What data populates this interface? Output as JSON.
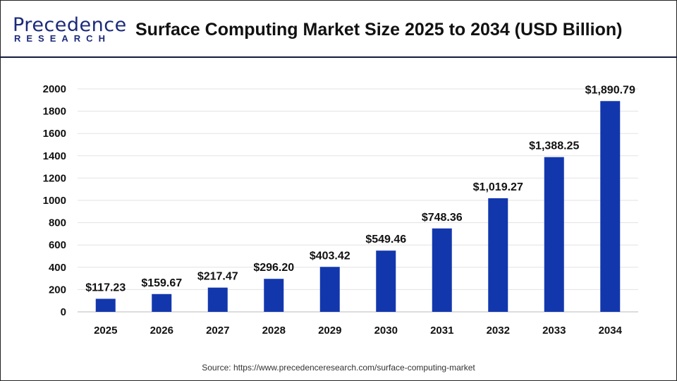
{
  "logo": {
    "text": "Precedence",
    "subtext": "RESEARCH"
  },
  "title": "Surface Computing Market Size 2025 to 2034 (USD Billion)",
  "source": "Source: https://www.precedenceresearch.com/surface-computing-market",
  "chart_data": {
    "type": "bar",
    "title": "Surface Computing Market Size 2025 to 2034 (USD Billion)",
    "categories": [
      "2025",
      "2026",
      "2027",
      "2028",
      "2029",
      "2030",
      "2031",
      "2032",
      "2033",
      "2034"
    ],
    "values": [
      117.23,
      159.67,
      217.47,
      296.2,
      403.42,
      549.46,
      748.36,
      1019.27,
      1388.25,
      1890.79
    ],
    "data_labels": [
      "$117.23",
      "$159.67",
      "$217.47",
      "$296.20",
      "$403.42",
      "$549.46",
      "$748.36",
      "$1,019.27",
      "$1,388.25",
      "$1,890.79"
    ],
    "ylim": [
      0,
      2000
    ],
    "yticks": [
      0,
      200,
      400,
      600,
      800,
      1000,
      1200,
      1400,
      1600,
      1800,
      2000
    ],
    "grid": true,
    "bar_color": "#1237ad",
    "xlabel": "",
    "ylabel": ""
  }
}
